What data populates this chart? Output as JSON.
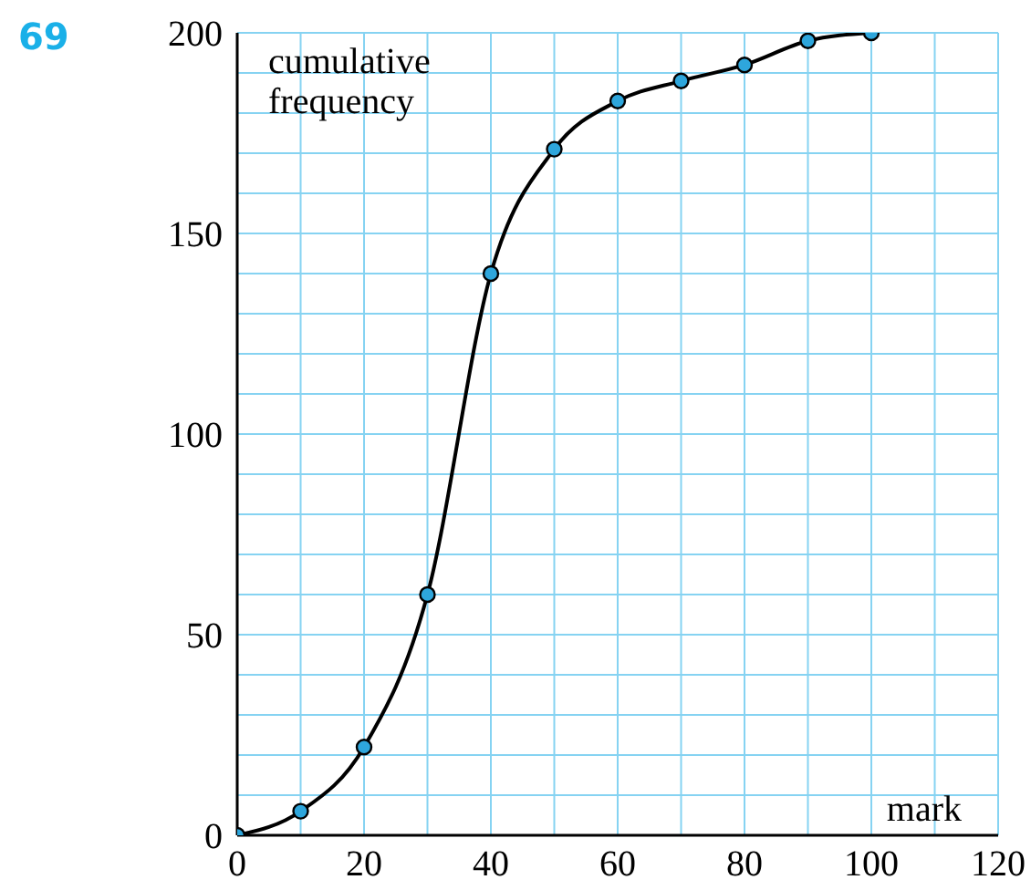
{
  "chart_data": {
    "type": "line",
    "xlabel": "mark",
    "ylabel": "cumulative frequency",
    "annotations": [
      "69"
    ],
    "x": [
      0,
      10,
      20,
      30,
      40,
      50,
      60,
      70,
      80,
      90,
      100
    ],
    "series": [
      {
        "color": "#000000",
        "values": [
          0,
          6,
          22,
          60,
          140,
          171,
          183,
          188,
          192,
          198,
          200
        ]
      }
    ],
    "xlim": [
      0,
      120
    ],
    "xticks": [
      0,
      {
        "value": 10,
        "label": null
      },
      20,
      {
        "value": 30,
        "label": null
      },
      40,
      {
        "value": 50,
        "label": null
      },
      60,
      {
        "value": 70,
        "label": null
      },
      80,
      {
        "value": 90,
        "label": null
      },
      100,
      {
        "value": 110,
        "label": null
      },
      120
    ],
    "ylim": [
      0,
      200
    ],
    "yticks": [
      0,
      {
        "value": 10,
        "label": null
      },
      {
        "value": 20,
        "label": null
      },
      {
        "value": 30,
        "label": null
      },
      {
        "value": 40,
        "label": null
      },
      50,
      {
        "value": 60,
        "label": null
      },
      {
        "value": 70,
        "label": null
      },
      {
        "value": 80,
        "label": null
      },
      {
        "value": 90,
        "label": null
      },
      100,
      {
        "value": 110,
        "label": null
      },
      {
        "value": 120,
        "label": null
      },
      {
        "value": 130,
        "label": null
      },
      {
        "value": 140,
        "label": null
      },
      150,
      {
        "value": 160,
        "label": null
      },
      {
        "value": 170,
        "label": null
      },
      {
        "value": 180,
        "label": null
      },
      {
        "value": 190,
        "label": null
      },
      200
    ],
    "grid": true,
    "marker": "circle",
    "line_style": "solid"
  }
}
